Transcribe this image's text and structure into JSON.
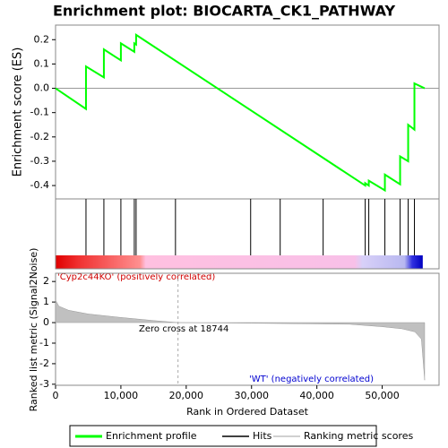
{
  "chart_data": [
    {
      "type": "line",
      "title": "Enrichment plot: BIOCARTA_CK1_PATHWAY",
      "ylabel": "Enrichment score (ES)",
      "xlim": [
        0,
        58700
      ],
      "ylim": [
        -0.455,
        0.26
      ],
      "yticks": [
        0.2,
        0.1,
        {
          "value": 0,
          "label": "0.0"
        },
        -0.1,
        -0.2,
        -0.3,
        -0.4
      ],
      "series": [
        {
          "name": "Enrichment profile",
          "color": "#00ff00",
          "x": [
            0,
            4658,
            4658,
            7397,
            7397,
            10000,
            10000,
            12055,
            12055,
            12329,
            12329,
            47397,
            47397,
            47945,
            47945,
            50411,
            50411,
            52740,
            52740,
            53973,
            53973,
            54932,
            54932,
            56500
          ],
          "values": [
            0,
            -0.085,
            0.09,
            0.045,
            0.16,
            0.115,
            0.185,
            0.15,
            0.185,
            0.18,
            0.22,
            -0.4,
            -0.39,
            -0.4,
            -0.38,
            -0.42,
            -0.355,
            -0.395,
            -0.28,
            -0.3,
            -0.15,
            -0.17,
            0.02,
            0.0
          ]
        }
      ]
    },
    {
      "type": "rug",
      "xlim": [
        0,
        58700
      ],
      "series": [
        {
          "name": "Hits",
          "color": "#000000",
          "x": [
            4658,
            7397,
            10000,
            12055,
            12329,
            18356,
            29863,
            34384,
            40959,
            47397,
            47945,
            50411,
            52740,
            53973,
            54932
          ]
        }
      ]
    },
    {
      "type": "area",
      "ylabel": "Ranked list metric (Signal2Noise)",
      "xlabel": "Rank in Ordered Dataset",
      "xlim": [
        0,
        58700
      ],
      "ylim": [
        -3.05,
        2.4
      ],
      "xticks": [
        0,
        {
          "value": 10000,
          "label": "10,000"
        },
        {
          "value": 20000,
          "label": "20,000"
        },
        {
          "value": 30000,
          "label": "30,000"
        },
        {
          "value": 40000,
          "label": "40,000"
        },
        {
          "value": 50000,
          "label": "50,000"
        }
      ],
      "yticks": [
        2,
        1,
        0,
        -1,
        -2,
        -3
      ],
      "zero_cross": 18744,
      "zero_cross_label": "Zero cross at 18744",
      "positive_label": "'Cyp2c44KO' (positively correlated)",
      "negative_label": "'WT' (negatively correlated)",
      "series": [
        {
          "name": "Ranking metric scores",
          "color": "#c0c0c0",
          "x": [
            0,
            500,
            2000,
            5000,
            10000,
            15000,
            18744,
            30000,
            45000,
            50000,
            53000,
            55000,
            56000,
            56500
          ],
          "values": [
            1.1,
            0.8,
            0.6,
            0.42,
            0.25,
            0.1,
            0,
            -0.03,
            -0.08,
            -0.2,
            -0.3,
            -0.45,
            -0.8,
            -2.8
          ]
        }
      ]
    }
  ]
}
